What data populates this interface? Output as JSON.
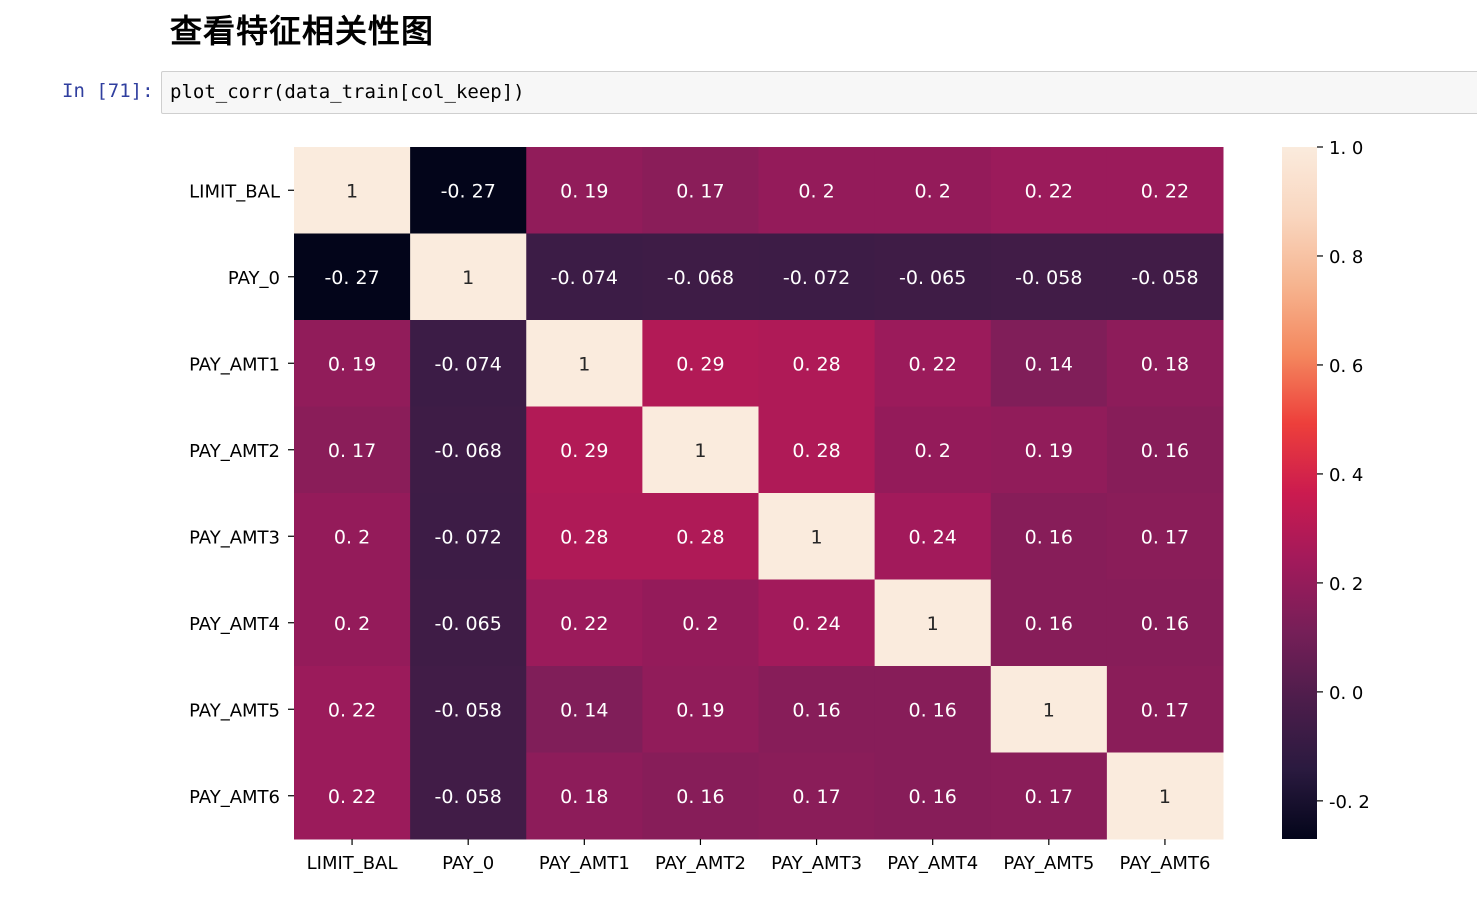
{
  "heading": "查看特征相关性图",
  "cell": {
    "prompt": "In [71]:",
    "code": "plot_corr(data_train[col_keep])"
  },
  "chart_data": {
    "type": "heatmap",
    "labels": [
      "LIMIT_BAL",
      "PAY_0",
      "PAY_AMT1",
      "PAY_AMT2",
      "PAY_AMT3",
      "PAY_AMT4",
      "PAY_AMT5",
      "PAY_AMT6"
    ],
    "values": [
      [
        1,
        -0.27,
        0.19,
        0.17,
        0.2,
        0.2,
        0.22,
        0.22
      ],
      [
        -0.27,
        1,
        -0.074,
        -0.068,
        -0.072,
        -0.065,
        -0.058,
        -0.058
      ],
      [
        0.19,
        -0.074,
        1,
        0.29,
        0.28,
        0.22,
        0.14,
        0.18
      ],
      [
        0.17,
        -0.068,
        0.29,
        1,
        0.28,
        0.2,
        0.19,
        0.16
      ],
      [
        0.2,
        -0.072,
        0.28,
        0.28,
        1,
        0.24,
        0.16,
        0.17
      ],
      [
        0.2,
        -0.065,
        0.22,
        0.2,
        0.24,
        1,
        0.16,
        0.16
      ],
      [
        0.22,
        -0.058,
        0.14,
        0.19,
        0.16,
        0.16,
        1,
        0.17
      ],
      [
        0.22,
        -0.058,
        0.18,
        0.16,
        0.17,
        0.16,
        0.17,
        1
      ]
    ],
    "annotations": [
      [
        "1",
        "-0. 27",
        "0. 19",
        "0. 17",
        "0. 2",
        "0. 2",
        "0. 22",
        "0. 22"
      ],
      [
        "-0. 27",
        "1",
        "-0. 074",
        "-0. 068",
        "-0. 072",
        "-0. 065",
        "-0. 058",
        "-0. 058"
      ],
      [
        "0. 19",
        "-0. 074",
        "1",
        "0. 29",
        "0. 28",
        "0. 22",
        "0. 14",
        "0. 18"
      ],
      [
        "0. 17",
        "-0. 068",
        "0. 29",
        "1",
        "0. 28",
        "0. 2",
        "0. 19",
        "0. 16"
      ],
      [
        "0. 2",
        "-0. 072",
        "0. 28",
        "0. 28",
        "1",
        "0. 24",
        "0. 16",
        "0. 17"
      ],
      [
        "0. 2",
        "-0. 065",
        "0. 22",
        "0. 2",
        "0. 24",
        "1",
        "0. 16",
        "0. 16"
      ],
      [
        "0. 22",
        "-0. 058",
        "0. 14",
        "0. 19",
        "0. 16",
        "0. 16",
        "1",
        "0. 17"
      ],
      [
        "0. 22",
        "-0. 058",
        "0. 18",
        "0. 16",
        "0. 17",
        "0. 16",
        "0. 17",
        "1"
      ]
    ],
    "colorbar": {
      "vmin": -0.27,
      "vmax": 1.0,
      "ticks": [
        1.0,
        0.8,
        0.6,
        0.4,
        0.2,
        0.0,
        -0.2
      ],
      "tick_labels": [
        "1. 0",
        "0. 8",
        "0. 6",
        "0. 4",
        "0. 2",
        "0. 0",
        "-0. 2"
      ],
      "colormap": "rocket",
      "stops": [
        "#03051a",
        "#2a1a3f",
        "#4c1d4b",
        "#761f58",
        "#a11a5b",
        "#cb1b4f",
        "#ed3f3b",
        "#f4875e",
        "#f6b48f",
        "#f9d6bf",
        "#faebdd"
      ]
    }
  }
}
